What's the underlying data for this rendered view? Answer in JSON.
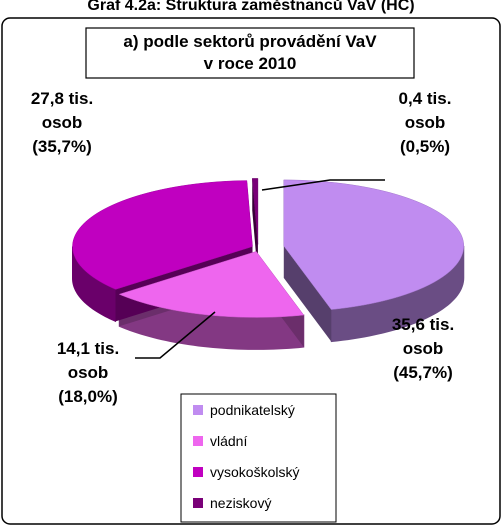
{
  "chart_data": {
    "type": "pie",
    "heading": "Graf 4.2a: Struktura zaměstnanců VaV (HC)",
    "title": [
      "a) podle sektorů provádění VaV",
      "v roce 2010"
    ],
    "categories": [
      "podnikatelský",
      "vládní",
      "vysokoškolský",
      "neziskový"
    ],
    "values": [
      45.7,
      18.0,
      35.7,
      0.5
    ],
    "value_labels": [
      [
        "35,6 tis.",
        "osob",
        "(45,7%)"
      ],
      [
        "14,1 tis.",
        "osob",
        "(18,0%)"
      ],
      [
        "27,8 tis.",
        "osob",
        "(35,7%)"
      ],
      [
        "0,4 tis.",
        "osob",
        "(0,5%)"
      ]
    ],
    "colors": [
      "#c08cf0",
      "#ee66ee",
      "#c000c0",
      "#7a0078"
    ],
    "legend": "bottom"
  }
}
